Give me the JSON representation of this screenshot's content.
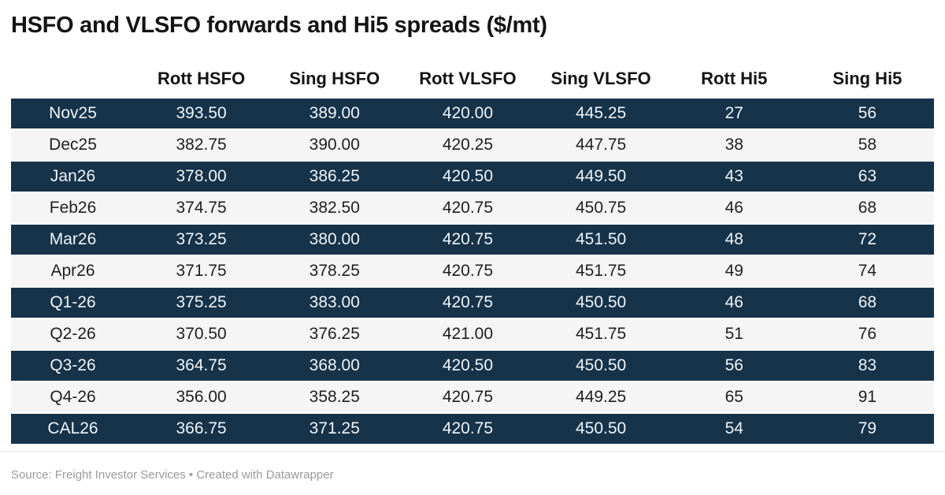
{
  "header": {
    "title": "HSFO and VLSFO forwards and Hi5 spreads ($/mt)"
  },
  "chart_data": {
    "type": "table",
    "title": "HSFO and VLSFO forwards and Hi5 spreads ($/mt)",
    "columns": [
      "",
      "Rott HSFO",
      "Sing HSFO",
      "Rott VLSFO",
      "Sing VLSFO",
      "Rott Hi5",
      "Sing Hi5"
    ],
    "rows": [
      {
        "label": "Nov25",
        "values": [
          "393.50",
          "389.00",
          "420.00",
          "445.25",
          "27",
          "56"
        ]
      },
      {
        "label": "Dec25",
        "values": [
          "382.75",
          "390.00",
          "420.25",
          "447.75",
          "38",
          "58"
        ]
      },
      {
        "label": "Jan26",
        "values": [
          "378.00",
          "386.25",
          "420.50",
          "449.50",
          "43",
          "63"
        ]
      },
      {
        "label": "Feb26",
        "values": [
          "374.75",
          "382.50",
          "420.75",
          "450.75",
          "46",
          "68"
        ]
      },
      {
        "label": "Mar26",
        "values": [
          "373.25",
          "380.00",
          "420.75",
          "451.50",
          "48",
          "72"
        ]
      },
      {
        "label": "Apr26",
        "values": [
          "371.75",
          "378.25",
          "420.75",
          "451.75",
          "49",
          "74"
        ]
      },
      {
        "label": "Q1-26",
        "values": [
          "375.25",
          "383.00",
          "420.75",
          "450.50",
          "46",
          "68"
        ]
      },
      {
        "label": "Q2-26",
        "values": [
          "370.50",
          "376.25",
          "421.00",
          "451.75",
          "51",
          "76"
        ]
      },
      {
        "label": "Q3-26",
        "values": [
          "364.75",
          "368.00",
          "420.50",
          "450.50",
          "56",
          "83"
        ]
      },
      {
        "label": "Q4-26",
        "values": [
          "356.00",
          "358.25",
          "420.75",
          "449.25",
          "65",
          "91"
        ]
      },
      {
        "label": "CAL26",
        "values": [
          "366.75",
          "371.25",
          "420.75",
          "450.50",
          "54",
          "79"
        ]
      }
    ],
    "layout": {
      "row_striping": "alternating dark/light starting dark",
      "alignment": "center"
    }
  },
  "colors": {
    "dark_row_bg": "#16334a",
    "dark_row_text": "#eef4f9",
    "light_row_bg": "#f5f5f6",
    "light_row_text": "#1f1f1f",
    "title_text": "#141414",
    "footer_text": "#9a9a9a"
  },
  "footer": {
    "source_line": "Source: Freight Investor Services • Created with Datawrapper"
  }
}
